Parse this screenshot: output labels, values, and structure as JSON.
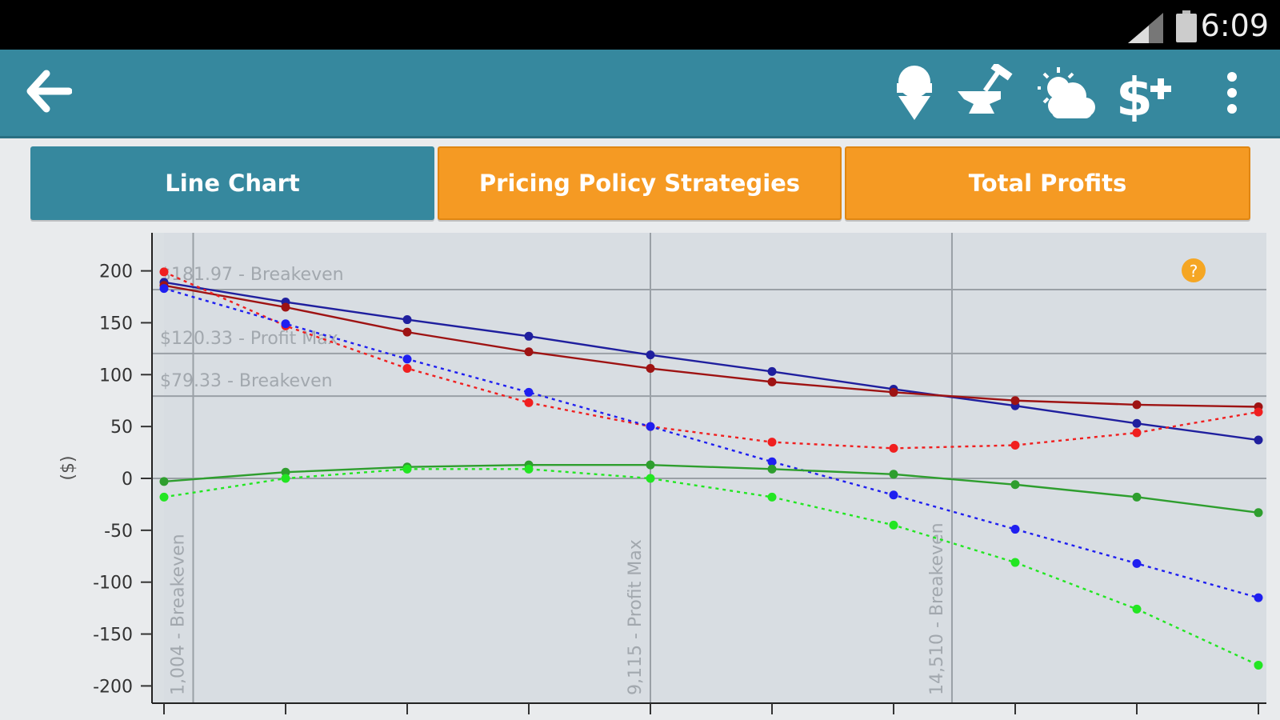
{
  "status_bar": {
    "time": "6:09"
  },
  "action_bar": {
    "icons": [
      "back-arrow-icon",
      "ice-cream-icon",
      "anvil-hammer-icon",
      "sun-cloud-icon",
      "dollar-plus-icon",
      "overflow-menu-icon"
    ]
  },
  "tabs": [
    {
      "label": "Line Chart",
      "active": true
    },
    {
      "label": "Pricing Policy Strategies",
      "active": false
    },
    {
      "label": "Total Profits",
      "active": false
    }
  ],
  "colors": {
    "accent": "#36889e",
    "orange": "#f59a23",
    "plot_bg": "#d8dde2",
    "navy": "#1f1f9e",
    "darkred": "#9e1313",
    "red": "#f01f1f",
    "blue": "#1f1ff0",
    "green": "#2e9e2e",
    "lightgreen": "#22e622"
  },
  "chart_data": {
    "type": "line",
    "ylabel": "($)",
    "ylim": [
      -200,
      200
    ],
    "yticks": [
      "200",
      "150",
      "100",
      "50",
      "0",
      "-50",
      "-100",
      "-150",
      "-200"
    ],
    "ytick_values": [
      200,
      150,
      100,
      50,
      0,
      -50,
      -100,
      -150,
      -200
    ],
    "x_points": [
      1,
      2,
      3,
      4,
      5,
      6,
      7,
      8,
      9,
      10
    ],
    "help": "?",
    "h_annotations": [
      {
        "value": 181.97,
        "label": "$181.97 - Breakeven"
      },
      {
        "value": 120.33,
        "label": "$120.33 - Profit Max"
      },
      {
        "value": 79.33,
        "label": "$79.33 - Breakeven"
      },
      {
        "value": 0,
        "label": ""
      }
    ],
    "v_annotations": [
      {
        "x": 1.24,
        "label": "1,004 - Breakeven"
      },
      {
        "x": 5.0,
        "label": "9,115 - Profit Max"
      },
      {
        "x": 7.48,
        "label": "14,510 - Breakeven"
      }
    ],
    "series": [
      {
        "color": "#1f1f9e",
        "dashed": false,
        "values": [
          189,
          170,
          153,
          137,
          119,
          103,
          86,
          70,
          53,
          37
        ]
      },
      {
        "color": "#9e1313",
        "dashed": false,
        "values": [
          186,
          165,
          141,
          122,
          106,
          93,
          83,
          75,
          71,
          69
        ]
      },
      {
        "color": "#f01f1f",
        "dashed": true,
        "values": [
          199,
          147,
          106,
          73,
          50,
          35,
          29,
          32,
          44,
          64
        ]
      },
      {
        "color": "#1f1ff0",
        "dashed": true,
        "values": [
          183,
          149,
          115,
          83,
          50,
          16,
          -16,
          -49,
          -82,
          -115
        ]
      },
      {
        "color": "#2e9e2e",
        "dashed": false,
        "values": [
          -3,
          6,
          11,
          13,
          13,
          9,
          4,
          -6,
          -18,
          -33
        ]
      },
      {
        "color": "#22e622",
        "dashed": true,
        "values": [
          -18,
          0,
          9,
          9,
          0,
          -18,
          -45,
          -81,
          -126,
          -180
        ]
      }
    ]
  }
}
